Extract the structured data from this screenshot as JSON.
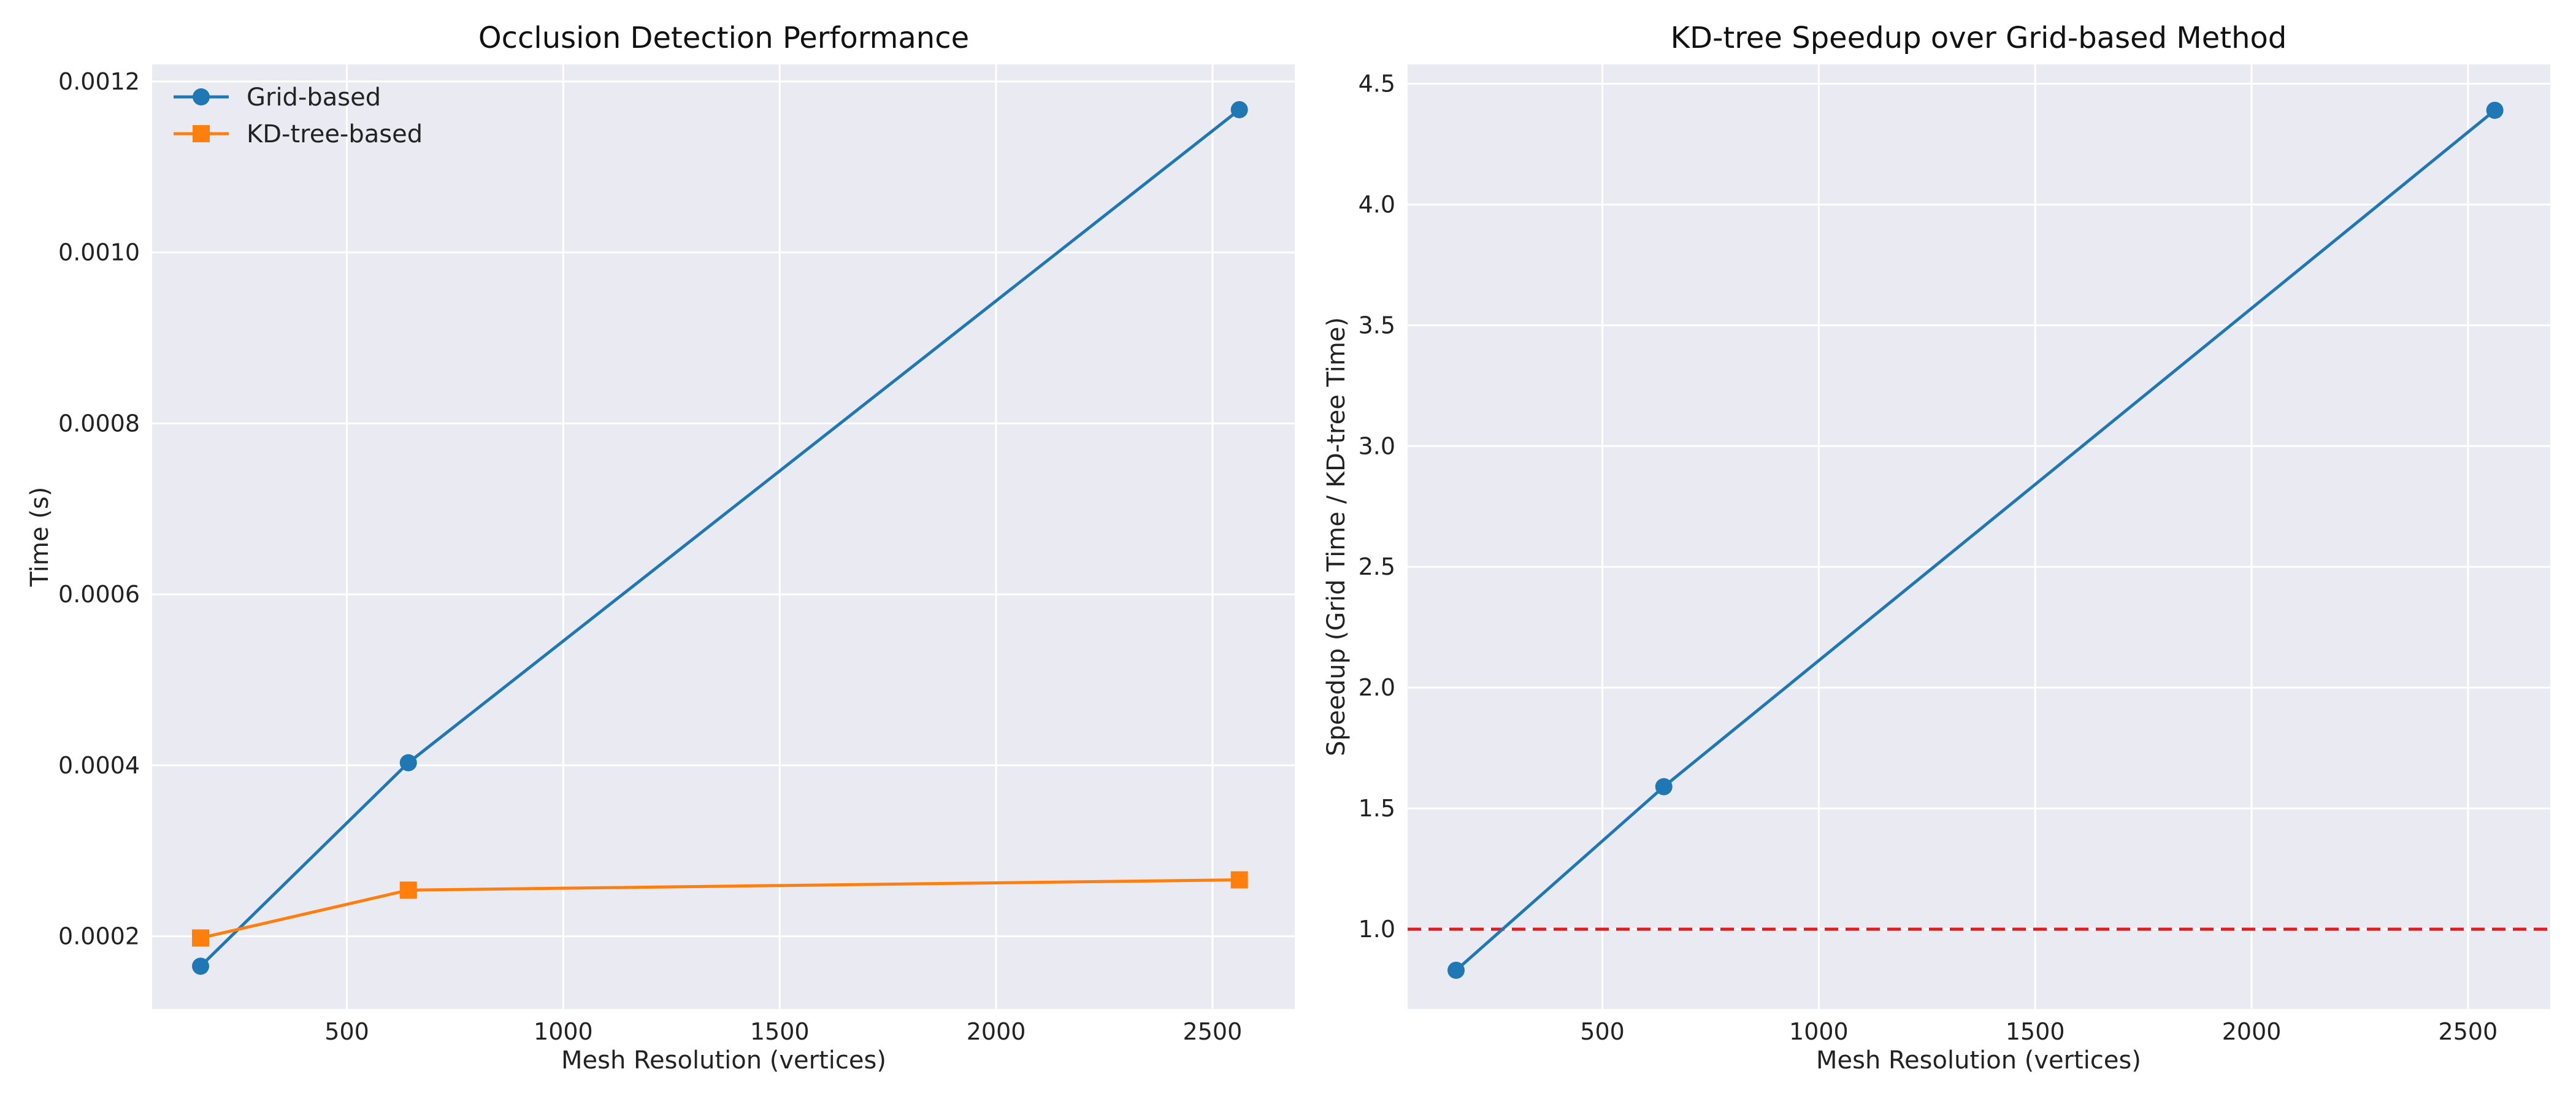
{
  "colors": {
    "grid_series": "#1F77B4",
    "kd_series": "#FF7F0E",
    "reference_line": "#E41A1C"
  },
  "chart_data": [
    {
      "type": "line",
      "title": "Occlusion Detection Performance",
      "xlabel": "Mesh Resolution (vertices)",
      "ylabel": "Time (s)",
      "xlim": [
        50,
        2690
      ],
      "ylim": [
        0.000115,
        0.00122
      ],
      "x_ticks": [
        500,
        1000,
        1500,
        2000,
        2500
      ],
      "y_ticks": [
        0.0002,
        0.0004,
        0.0006,
        0.0008,
        0.001,
        0.0012
      ],
      "y_tick_labels": [
        "0.0002",
        "0.0004",
        "0.0006",
        "0.0008",
        "0.0010",
        "0.0012"
      ],
      "grid": true,
      "legend_position": "top-left",
      "x": [
        162,
        642,
        2562
      ],
      "series": [
        {
          "name": "Grid-based",
          "marker": "circle",
          "values": [
            0.000165,
            0.000403,
            0.001167
          ]
        },
        {
          "name": "KD-tree-based",
          "marker": "square",
          "values": [
            0.000198,
            0.000254,
            0.000266
          ]
        }
      ]
    },
    {
      "type": "line",
      "title": "KD-tree Speedup over Grid-based Method",
      "xlabel": "Mesh Resolution (vertices)",
      "ylabel": "Speedup (Grid Time / KD-tree Time)",
      "xlim": [
        50,
        2690
      ],
      "ylim": [
        0.67,
        4.58
      ],
      "x_ticks": [
        500,
        1000,
        1500,
        2000,
        2500
      ],
      "y_ticks": [
        1.0,
        1.5,
        2.0,
        2.5,
        3.0,
        3.5,
        4.0,
        4.5
      ],
      "y_tick_labels": [
        "1.0",
        "1.5",
        "2.0",
        "2.5",
        "3.0",
        "3.5",
        "4.0",
        "4.5"
      ],
      "grid": true,
      "reference_line": {
        "y": 1.0,
        "style": "dashed"
      },
      "x": [
        162,
        642,
        2562
      ],
      "series": [
        {
          "marker": "circle",
          "values": [
            0.83,
            1.59,
            4.39
          ]
        }
      ]
    }
  ]
}
